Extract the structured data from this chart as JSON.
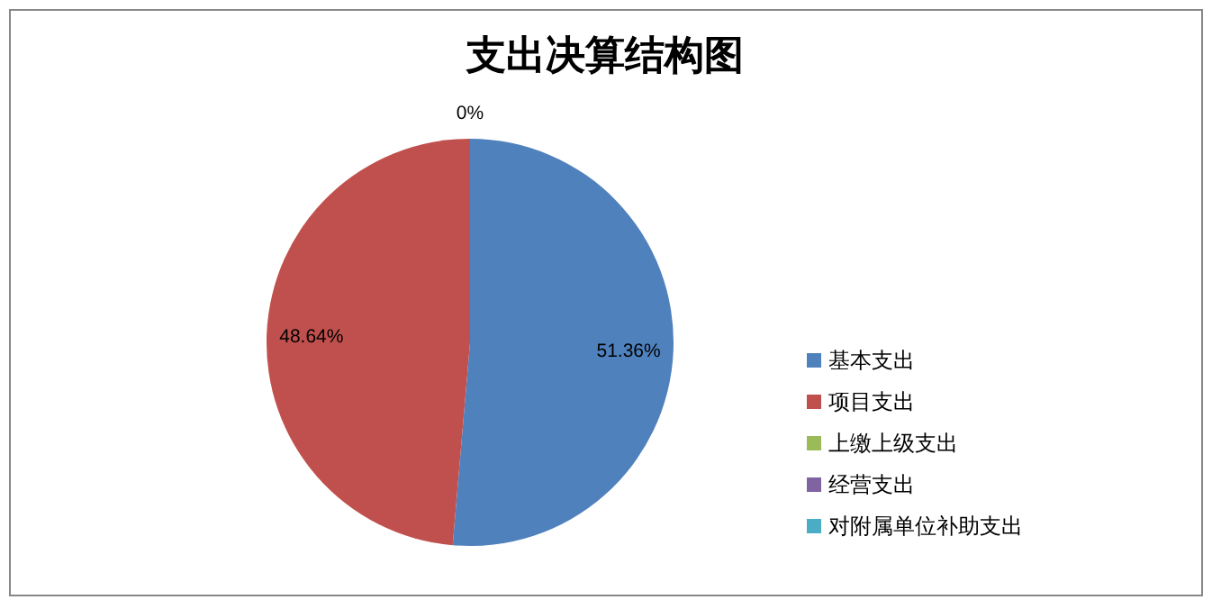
{
  "chart_data": {
    "type": "pie",
    "title": "支出决算结构图",
    "categories": [
      "基本支出",
      "项目支出",
      "上缴上级支出",
      "经营支出",
      "对附属单位补助支出"
    ],
    "values": [
      51.36,
      48.64,
      0,
      0,
      0
    ],
    "colors": [
      "#4f81bd",
      "#c0504d",
      "#9bbb59",
      "#8064a2",
      "#4bacc6"
    ],
    "value_labels": [
      "51.36%",
      "48.64%",
      "0%",
      null,
      null
    ],
    "legend": "right"
  }
}
